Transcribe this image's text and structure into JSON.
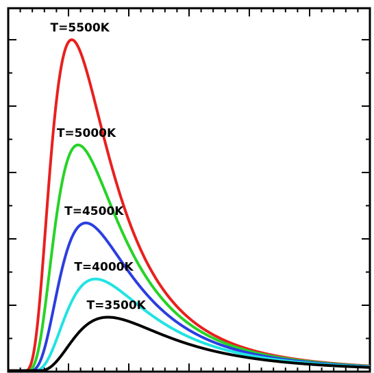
{
  "chart_data": {
    "type": "line",
    "title": "",
    "xlabel": "",
    "ylabel": "",
    "xlim": [
      0,
      3000
    ],
    "ylim": [
      0,
      1.095
    ],
    "grid": false,
    "legend": "inline labels",
    "x_ticks": [
      500,
      1000,
      1500,
      2000,
      2500
    ],
    "y_ticks": [
      0.2,
      0.4,
      0.6,
      0.8,
      1.0
    ],
    "series": [
      {
        "name": "T=5500K",
        "temperature": 5500,
        "color": "#e8201e",
        "peak_value": 1.0
      },
      {
        "name": "T=5000K",
        "temperature": 5000,
        "color": "#27d327",
        "peak_value": 0.683
      },
      {
        "name": "T=4500K",
        "temperature": 4500,
        "color": "#2b3ee0",
        "peak_value": 0.448
      },
      {
        "name": "T=4000K",
        "temperature": 4000,
        "color": "#22e3e3",
        "peak_value": 0.279
      },
      {
        "name": "T=3500K",
        "temperature": 3500,
        "color": "#000000",
        "peak_value": 0.164
      }
    ]
  }
}
